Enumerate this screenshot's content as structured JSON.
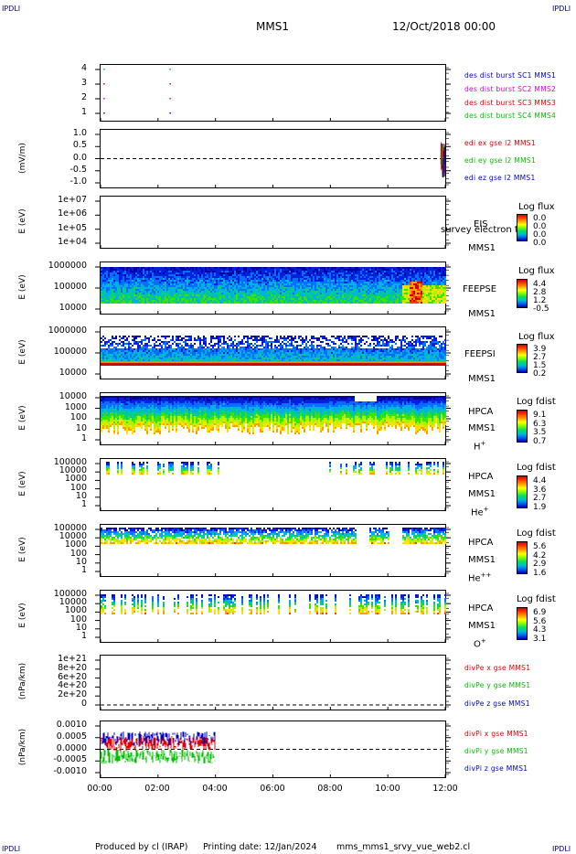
{
  "header": {
    "left_logo": "IPDLI",
    "right_logo": "IPDLI",
    "title": "MMS1",
    "date": "12/Oct/2018 00:00"
  },
  "footer": {
    "produced_by": "Produced by cl (IRAP)",
    "printing_date": "Printing date: 12/Jan/2024",
    "script": "mms_mms1_srvy_vue_web2.cl",
    "bottom_left_logo": "IPDLI",
    "bottom_right_logo": "IPDLI"
  },
  "colors": {
    "red": "#e00000",
    "green": "#00c000",
    "blue": "#0000c0",
    "magenta": "#e000e0",
    "spectro_low": "#0000a0",
    "spectro_high": "#d00000"
  },
  "chart_data": [
    {
      "type": "scatter",
      "id": "des-dist-burst",
      "ylim": [
        0.5,
        4.5
      ],
      "yticks": [
        "4",
        "3",
        "2",
        "1"
      ],
      "series": [
        {
          "name": "des dist burst SC1 MMS1",
          "color": "#0000c0",
          "y": 1,
          "x_hours": [
            0.1,
            2.4
          ]
        },
        {
          "name": "des dist burst SC2 MMS2",
          "color": "#e000e0",
          "y": 2,
          "x_hours": [
            0.1,
            2.4
          ]
        },
        {
          "name": "des dist burst SC3 MMS3",
          "color": "#e00000",
          "y": 3,
          "x_hours": [
            0.1,
            2.4
          ]
        },
        {
          "name": "des dist burst SC4 MMS4",
          "color": "#00c000",
          "y": 4,
          "x_hours": [
            0.1,
            2.4
          ]
        }
      ]
    },
    {
      "type": "line",
      "id": "edi-e",
      "ylabel": "(mV/m)",
      "ylim": [
        -1.2,
        1.2
      ],
      "yticks": [
        "1.0",
        "0.5",
        "0.0",
        "-0.5",
        "-1.0"
      ],
      "series": [
        {
          "name": "edi ex gse l2 MMS1",
          "color": "#e00000"
        },
        {
          "name": "edi ey gse l2 MMS1",
          "color": "#00c000"
        },
        {
          "name": "edi ez gse l2 MMS1",
          "color": "#0000c0"
        }
      ]
    },
    {
      "type": "heatmap",
      "id": "eis",
      "ylabel": "E (eV)",
      "yticks": [
        "1e+07",
        "1e+06",
        "1e+05",
        "1e+04"
      ],
      "instrument": "EIS",
      "spacecraft": "MMS1",
      "overlay_text": "survey electron to",
      "cbar_title": "Log flux",
      "cbar_labels": [
        "0.0",
        "0.0",
        "0.0",
        "0.0"
      ]
    },
    {
      "type": "heatmap",
      "id": "feepse",
      "ylabel": "E (eV)",
      "yticks": [
        "1000000",
        "100000",
        "10000"
      ],
      "instrument": "FEEPSE",
      "spacecraft": "MMS1",
      "cbar_title": "Log flux",
      "cbar_labels": [
        "4.4",
        "2.8",
        "1.2",
        "-0.5"
      ]
    },
    {
      "type": "heatmap",
      "id": "feepsi",
      "ylabel": "E (eV)",
      "yticks": [
        "1000000",
        "100000",
        "10000"
      ],
      "instrument": "FEEPSI",
      "spacecraft": "MMS1",
      "cbar_title": "Log flux",
      "cbar_labels": [
        "3.9",
        "2.7",
        "1.5",
        "0.2"
      ]
    },
    {
      "type": "heatmap",
      "id": "hpca-h",
      "ylabel": "E (eV)",
      "yticks": [
        "10000",
        "1000",
        "100",
        "10",
        "1"
      ],
      "instrument": "HPCA",
      "spacecraft": "MMS1",
      "species": "H",
      "charge": "+",
      "cbar_title": "Log fdist",
      "cbar_labels": [
        "9.1",
        "6.3",
        "3.5",
        "0.7"
      ]
    },
    {
      "type": "heatmap",
      "id": "hpca-he",
      "ylabel": "E (eV)",
      "yticks": [
        "100000",
        "10000",
        "1000",
        "100",
        "10",
        "1"
      ],
      "instrument": "HPCA",
      "spacecraft": "MMS1",
      "species": "He",
      "charge": "+",
      "cbar_title": "Log fdist",
      "cbar_labels": [
        "4.4",
        "3.6",
        "2.7",
        "1.9"
      ]
    },
    {
      "type": "heatmap",
      "id": "hpca-he2",
      "ylabel": "E (eV)",
      "yticks": [
        "100000",
        "10000",
        "1000",
        "100",
        "10",
        "1"
      ],
      "instrument": "HPCA",
      "spacecraft": "MMS1",
      "species": "He",
      "charge": "++",
      "cbar_title": "Log fdist",
      "cbar_labels": [
        "5.6",
        "4.2",
        "2.9",
        "1.6"
      ]
    },
    {
      "type": "heatmap",
      "id": "hpca-o",
      "ylabel": "E (eV)",
      "yticks": [
        "100000",
        "10000",
        "1000",
        "100",
        "10",
        "1"
      ],
      "instrument": "HPCA",
      "spacecraft": "MMS1",
      "species": "O",
      "charge": "+",
      "cbar_title": "Log fdist",
      "cbar_labels": [
        "6.9",
        "5.6",
        "4.3",
        "3.1"
      ]
    },
    {
      "type": "line",
      "id": "divpe",
      "ylabel": "(nPa/km)",
      "yticks": [
        "1e+21",
        "8e+20",
        "6e+20",
        "4e+20",
        "2e+20",
        "0"
      ],
      "series": [
        {
          "name": "divPe x gse MMS1",
          "color": "#e00000"
        },
        {
          "name": "divPe y gse MMS1",
          "color": "#00c000"
        },
        {
          "name": "divPe z gse MMS1",
          "color": "#0000c0"
        }
      ]
    },
    {
      "type": "line",
      "id": "divpi",
      "ylabel": "(nPa/km)",
      "ylim": [
        -0.0013,
        0.0013
      ],
      "yticks": [
        "0.0010",
        "0.0005",
        "0.0000",
        "-0.0005",
        "-0.0010"
      ],
      "series": [
        {
          "name": "divPi x gse MMS1",
          "color": "#e00000",
          "x_hours": [
            0,
            4
          ],
          "center": 0.0003,
          "spread": 0.0004
        },
        {
          "name": "divPi y gse MMS1",
          "color": "#00c000",
          "x_hours": [
            0,
            4
          ],
          "center": -0.0004,
          "spread": 0.0004
        },
        {
          "name": "divPi z gse MMS1",
          "color": "#0000c0",
          "x_hours": [
            0,
            4
          ],
          "center": 0.0006,
          "spread": 0.0004
        }
      ]
    }
  ],
  "xaxis": {
    "ticks": [
      "00:00",
      "02:00",
      "04:00",
      "06:00",
      "08:00",
      "10:00",
      "12:00"
    ]
  }
}
